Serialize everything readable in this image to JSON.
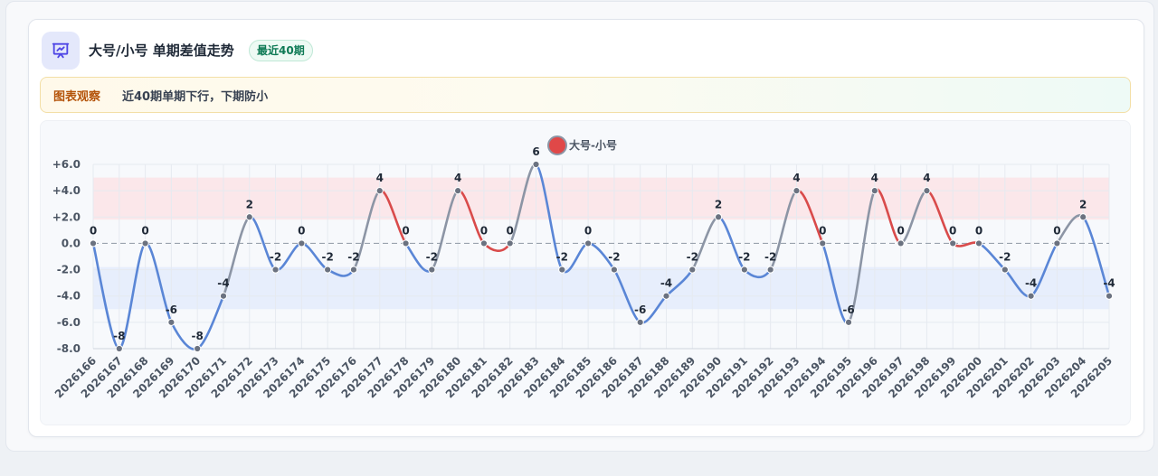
{
  "header": {
    "icon": "chart-presentation-icon",
    "title": "大号/小号 单期差值走势",
    "badge": "最近40期"
  },
  "observation": {
    "label": "图表观察",
    "text": "近40期单期下行，下期防小"
  },
  "colors": {
    "up": "#d94b4b",
    "down": "#5a86d6",
    "flat": "#8c95a5",
    "upper_band": "#fbe4e6",
    "lower_band": "#e4ecfb"
  },
  "chart_data": {
    "type": "line",
    "title": "",
    "xlabel": "",
    "ylabel": "",
    "legend": {
      "position": "top-center"
    },
    "series": [
      {
        "name": "大号-小号",
        "values": [
          0,
          -8,
          0,
          -6,
          -8,
          -4,
          2,
          -2,
          0,
          -2,
          -2,
          4,
          0,
          -2,
          4,
          0,
          0,
          6,
          -2,
          0,
          -2,
          -6,
          -4,
          -2,
          2,
          -2,
          -2,
          4,
          0,
          -6,
          4,
          0,
          4,
          0,
          0,
          -2,
          -4,
          0,
          2,
          -4
        ]
      }
    ],
    "categories": [
      "2026166",
      "2026167",
      "2026168",
      "2026169",
      "2026170",
      "2026171",
      "2026172",
      "2026173",
      "2026174",
      "2026175",
      "2026176",
      "2026177",
      "2026178",
      "2026179",
      "2026180",
      "2026181",
      "2026182",
      "2026183",
      "2026184",
      "2026185",
      "2026186",
      "2026187",
      "2026188",
      "2026189",
      "2026190",
      "2026191",
      "2026192",
      "2026193",
      "2026194",
      "2026195",
      "2026196",
      "2026197",
      "2026198",
      "2026199",
      "2026200",
      "2026201",
      "2026202",
      "2026203",
      "2026204",
      "2026205"
    ],
    "ylim": [
      -8,
      6
    ],
    "yticks": [
      "+6.0",
      "+4.0",
      "+2.0",
      "0.0",
      "-2.0",
      "-4.0",
      "-6.0",
      "-8.0"
    ],
    "bands": [
      {
        "from": 1.8,
        "to": 5.0,
        "color": "upper"
      },
      {
        "from": -5.0,
        "to": -1.8,
        "color": "lower"
      }
    ],
    "grid": true
  }
}
